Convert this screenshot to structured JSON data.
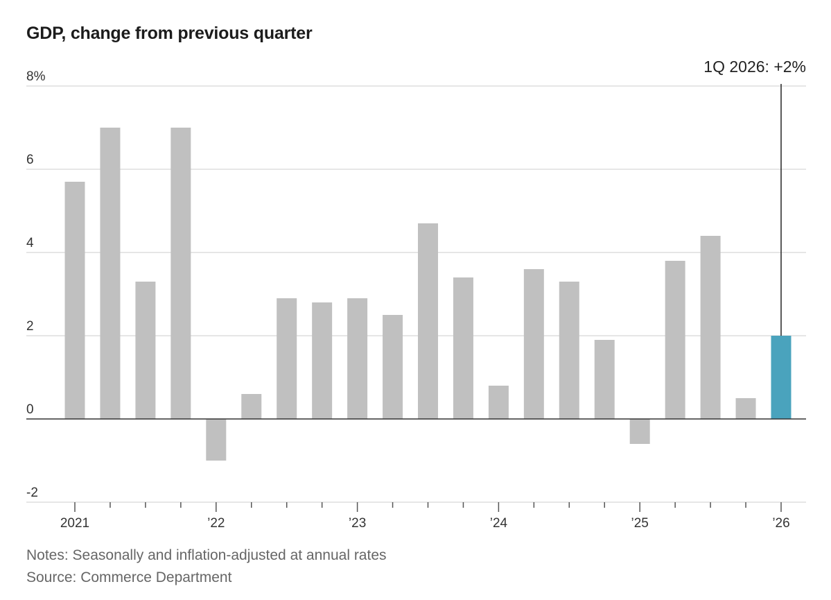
{
  "chart_data": {
    "type": "bar",
    "title": "GDP, change from previous quarter",
    "xlabel": "",
    "ylabel": "",
    "ylim": [
      -2,
      8
    ],
    "yticks": [
      "8%",
      "6",
      "4",
      "2",
      "0",
      "-2"
    ],
    "ytick_values": [
      8,
      6,
      4,
      2,
      0,
      -2
    ],
    "xtick_labels": [
      "2021",
      "’22",
      "’23",
      "’24",
      "’25",
      "’26"
    ],
    "xtick_bar_index": [
      0,
      4,
      8,
      12,
      16,
      20
    ],
    "grid": true,
    "values": [
      5.7,
      7.0,
      3.3,
      7.0,
      -1.0,
      0.6,
      2.9,
      2.8,
      2.9,
      2.5,
      4.7,
      3.4,
      0.8,
      3.6,
      3.3,
      1.9,
      -0.6,
      3.8,
      4.4,
      0.5,
      2.0
    ],
    "colors": {
      "bar": "#c0c0c0",
      "highlight": "#4aa3bd",
      "grid": "#dddddd",
      "axis": "#333333"
    },
    "annotation": {
      "text": "1Q 2026: +2%",
      "bar_index": 20
    }
  },
  "notes": "Notes: Seasonally and inflation-adjusted at annual rates",
  "source": "Source: Commerce Department"
}
